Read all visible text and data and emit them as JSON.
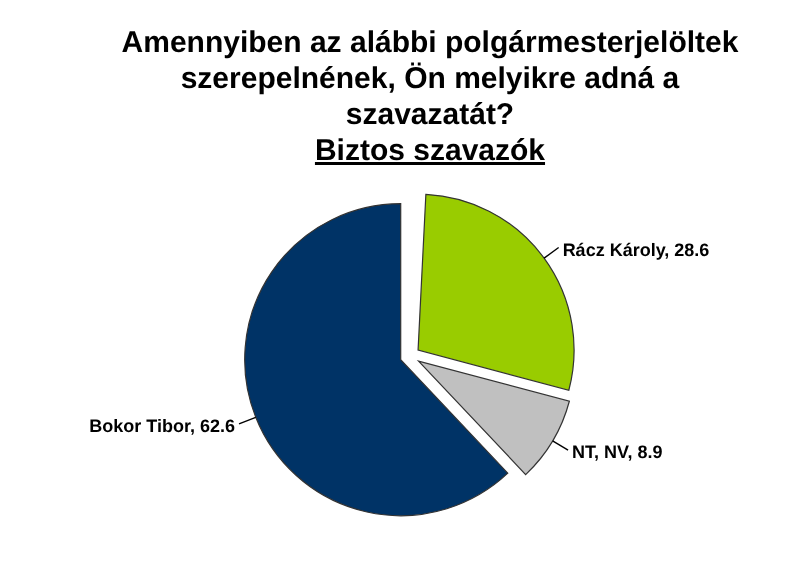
{
  "chart_data": {
    "type": "pie",
    "title": "Amennyiben az alábbi polgármesterjelöltek szerepelnének, Ön melyikre adná a szavazatát?",
    "subtitle": "Biztos szavazók",
    "categories": [
      "Rácz Károly",
      "NT, NV",
      "Bokor Tibor"
    ],
    "values": [
      28.6,
      8.9,
      62.6
    ],
    "value_labels": [
      ", 28.6",
      ", 8.9",
      ", 62.6"
    ],
    "colors": [
      "#99cc00",
      "#c0c0c0",
      "#003366"
    ],
    "legend": false
  }
}
